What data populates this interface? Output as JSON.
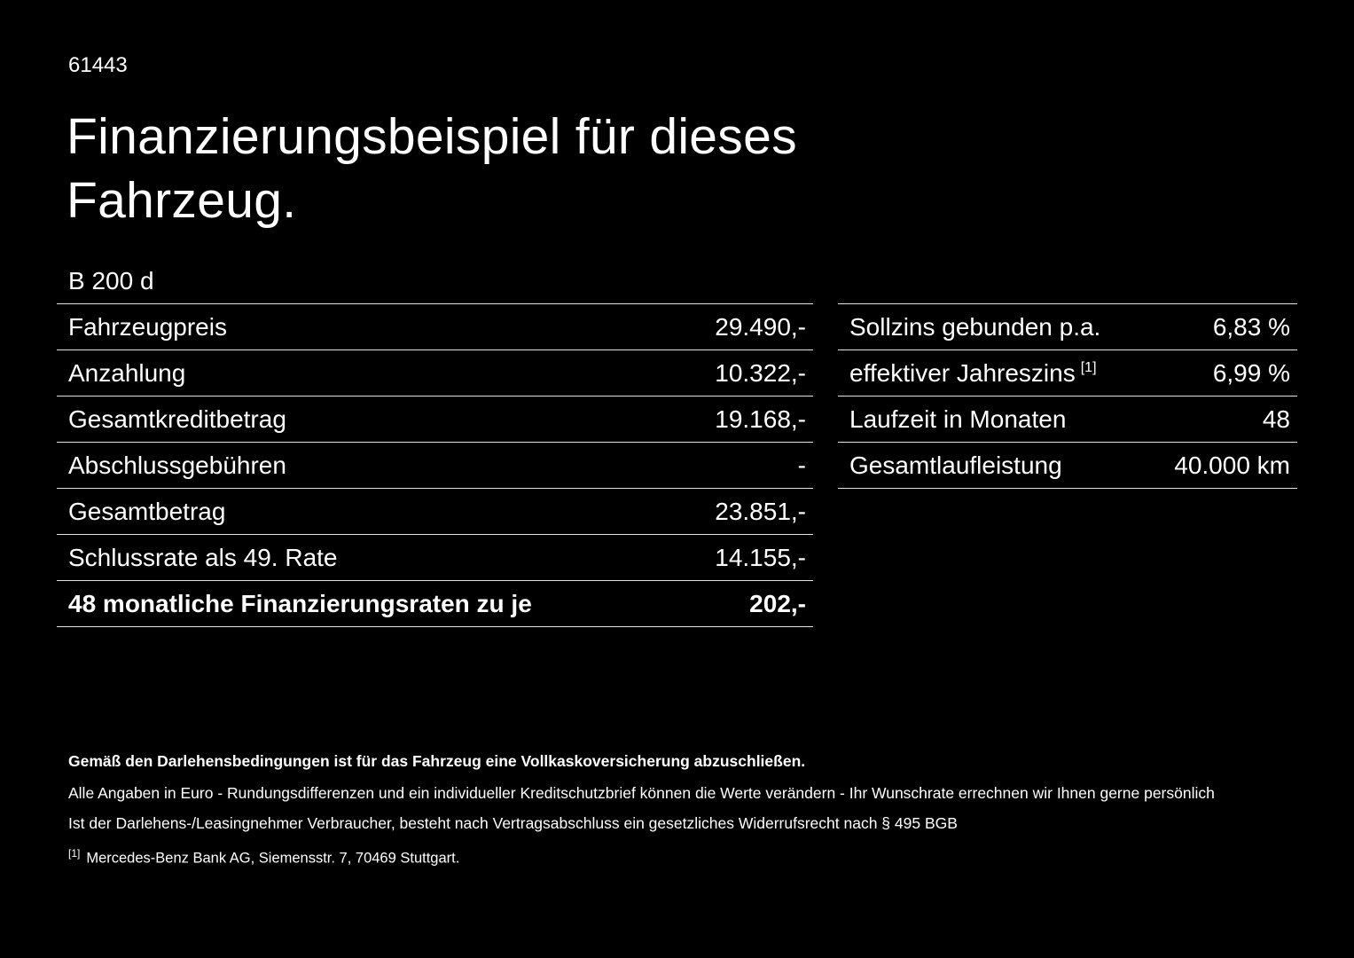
{
  "header": {
    "id_number": "61443",
    "title_line1": "Finanzierungsbeispiel für dieses",
    "title_line2": "Fahrzeug.",
    "model": "B 200 d"
  },
  "finance_table": {
    "rows": [
      {
        "label": "Fahrzeugpreis",
        "value": "29.490,-"
      },
      {
        "label": "Anzahlung",
        "value": "10.322,-"
      },
      {
        "label": "Gesamtkreditbetrag",
        "value": "19.168,-"
      },
      {
        "label": "Abschlussgebühren",
        "value": "-"
      },
      {
        "label": "Gesamtbetrag",
        "value": "23.851,-"
      },
      {
        "label": "Schlussrate als 49. Rate",
        "value": "14.155,-"
      },
      {
        "label": "48 monatliche Finanzierungsraten zu je",
        "value": "202,-"
      }
    ]
  },
  "conditions_table": {
    "rows": [
      {
        "label": "Sollzins gebunden p.a.",
        "value": "6,83 %"
      },
      {
        "label": "effektiver Jahreszins",
        "sup": "[1]",
        "value": "6,99 %"
      },
      {
        "label": "Laufzeit in Monaten",
        "value": "48"
      },
      {
        "label": "Gesamtlaufleistung",
        "value": "40.000 km"
      }
    ]
  },
  "footnotes": {
    "insurance": "Gemäß den Darlehensbedingungen ist für das Fahrzeug eine Vollkaskoversicherung abzuschließen.",
    "euro": "Alle Angaben in Euro - Rundungsdifferenzen und ein individueller Kreditschutzbrief können die Werte verändern - Ihr Wunschrate errechnen wir Ihnen gerne persönlich",
    "withdrawal": "Ist der Darlehens-/Leasingnehmer Verbraucher, besteht nach Vertragsabschluss ein gesetzliches Widerrufsrecht nach § 495 BGB",
    "ref_marker": "[1]",
    "ref_text": "Mercedes-Benz Bank AG, Siemensstr. 7, 70469 Stuttgart."
  }
}
